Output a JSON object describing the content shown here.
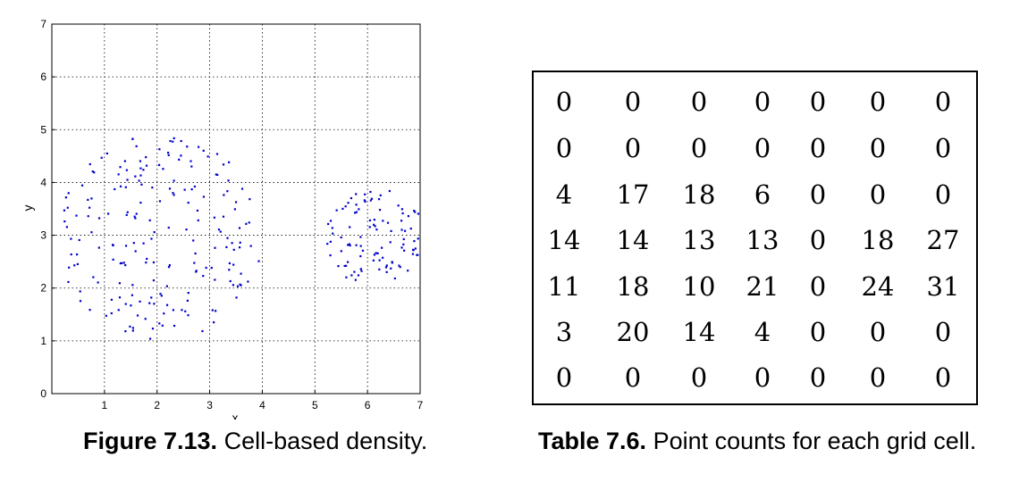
{
  "figure": {
    "label": "Figure 7.13.",
    "caption_text": "Cell-based density."
  },
  "table": {
    "label": "Table 7.6.",
    "caption_text": "Point counts for each grid cell.",
    "rows": [
      [
        0,
        0,
        0,
        0,
        0,
        0,
        0
      ],
      [
        0,
        0,
        0,
        0,
        0,
        0,
        0
      ],
      [
        4,
        17,
        18,
        6,
        0,
        0,
        0
      ],
      [
        14,
        14,
        13,
        13,
        0,
        18,
        27
      ],
      [
        11,
        18,
        10,
        21,
        0,
        24,
        31
      ],
      [
        3,
        20,
        14,
        4,
        0,
        0,
        0
      ],
      [
        0,
        0,
        0,
        0,
        0,
        0,
        0
      ]
    ]
  },
  "chart_data": {
    "type": "scatter",
    "xlabel": "x",
    "ylabel": "y",
    "xlim": [
      0,
      7
    ],
    "ylim": [
      0,
      7
    ],
    "xticks": [
      "1",
      "2",
      "3",
      "4",
      "5",
      "6",
      "7"
    ],
    "yticks": [
      "0",
      "1",
      "2",
      "3",
      "4",
      "5",
      "6",
      "7"
    ],
    "grid": true,
    "marker_color": "#0000cc",
    "clusters": [
      {
        "center": [
          2.05,
          2.95
        ],
        "radius": 1.95
      },
      {
        "center": [
          6.15,
          2.95
        ],
        "radius": 0.95
      }
    ],
    "cell_counts": [
      [
        0,
        0,
        0,
        0,
        0,
        0,
        0
      ],
      [
        0,
        0,
        0,
        0,
        0,
        0,
        0
      ],
      [
        4,
        17,
        18,
        6,
        0,
        0,
        0
      ],
      [
        14,
        14,
        13,
        13,
        0,
        18,
        27
      ],
      [
        11,
        18,
        10,
        21,
        0,
        24,
        31
      ],
      [
        3,
        20,
        14,
        4,
        0,
        0,
        0
      ],
      [
        0,
        0,
        0,
        0,
        0,
        0,
        0
      ]
    ]
  }
}
